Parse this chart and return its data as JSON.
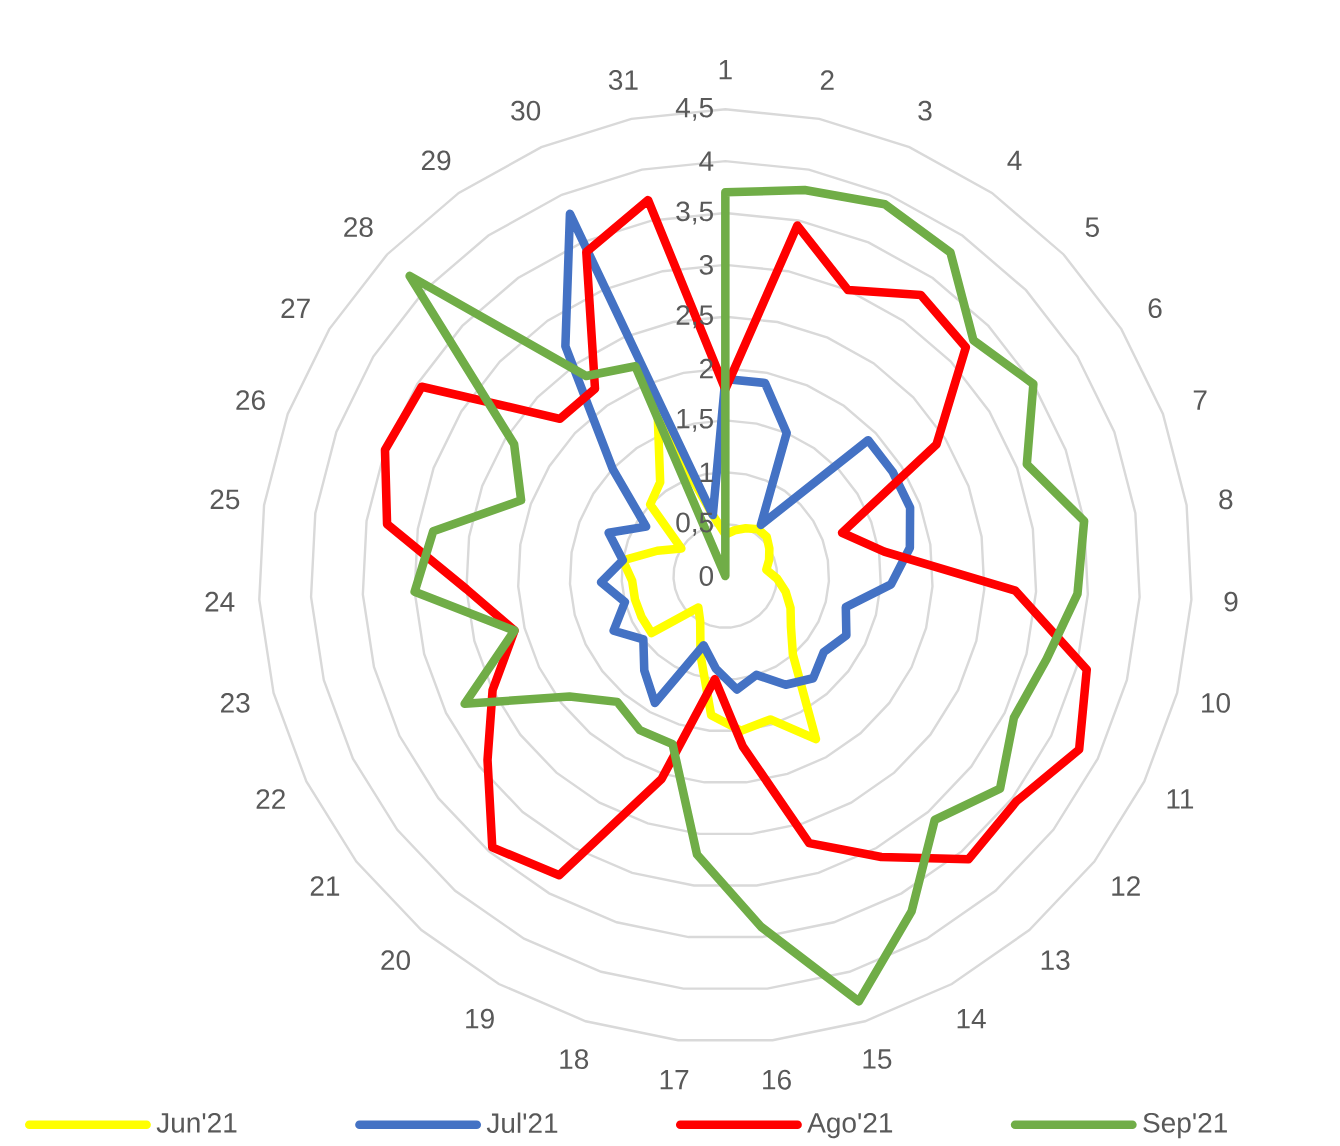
{
  "chart_data": {
    "type": "radar",
    "categories": [
      "1",
      "2",
      "3",
      "4",
      "5",
      "6",
      "7",
      "8",
      "9",
      "10",
      "11",
      "12",
      "13",
      "14",
      "15",
      "16",
      "17",
      "18",
      "19",
      "20",
      "21",
      "22",
      "23",
      "24",
      "25",
      "26",
      "27",
      "28",
      "29",
      "30",
      "31"
    ],
    "series": [
      {
        "name": "Jun'21",
        "color": "#ffff00",
        "values": [
          0.4,
          0.45,
          0.5,
          0.55,
          0.55,
          0.5,
          0.45,
          0.4,
          0.5,
          0.6,
          0.7,
          0.8,
          1.0,
          1.8,
          1.45,
          1.5,
          1.35,
          0.8,
          0.5,
          0.4,
          0.9,
          0.9,
          0.9,
          0.9,
          1.0,
          0.7,
          0.5,
          1.0,
          1.1,
          1.65,
          0.6
        ]
      },
      {
        "name": "Jul'21",
        "color": "#4472c4",
        "values": [
          1.9,
          1.9,
          1.5,
          0.6,
          1.9,
          1.9,
          1.9,
          1.8,
          1.6,
          1.2,
          1.3,
          1.2,
          1.3,
          1.2,
          1.0,
          1.1,
          0.9,
          0.7,
          1.4,
          1.2,
          1.0,
          1.2,
          1.0,
          1.2,
          1.0,
          1.2,
          0.9,
          1.5,
          2.7,
          3.8,
          0.6
        ]
      },
      {
        "name": "Ago'21",
        "color": "#ff0000",
        "values": [
          1.8,
          3.45,
          3.0,
          3.3,
          3.2,
          2.4,
          1.2,
          1.55,
          2.8,
          3.6,
          3.8,
          3.55,
          3.6,
          3.1,
          2.7,
          1.65,
          1.0,
          2.05,
          3.3,
          3.45,
          2.9,
          2.5,
          2.1,
          2.5,
          3.3,
          3.5,
          3.45,
          2.2,
          2.2,
          3.4,
          3.7
        ]
      },
      {
        "name": "Sep'21",
        "color": "#70ad47",
        "values": [
          3.7,
          3.8,
          3.9,
          3.8,
          3.3,
          3.5,
          3.1,
          3.5,
          3.4,
          3.2,
          3.1,
          3.35,
          3.1,
          3.7,
          4.3,
          3.4,
          2.7,
          1.7,
          1.7,
          1.6,
          1.9,
          2.8,
          2.1,
          3.0,
          2.85,
          2.1,
          2.4,
          4.2,
          2.35,
          2.2,
          0
        ]
      }
    ],
    "ylim": [
      0,
      4.5
    ],
    "yticks": [
      0,
      {
        "value": 0.5,
        "label": "0,5"
      },
      1,
      {
        "value": 1.5,
        "label": "1,5"
      },
      2,
      {
        "value": 2.5,
        "label": "2,5"
      },
      3,
      {
        "value": 3.5,
        "label": "3,5"
      },
      4,
      {
        "value": 4.5,
        "label": "4,5"
      }
    ],
    "grid": true,
    "legend": "bottom"
  }
}
